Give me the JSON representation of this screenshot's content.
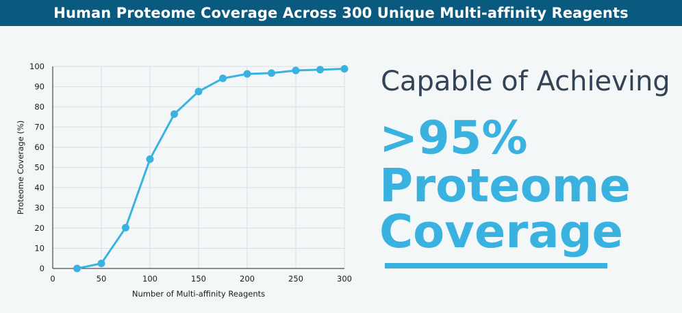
{
  "header": {
    "title": "Human Proteome Coverage Across 300 Unique Multi-affinity Reagents"
  },
  "headline": {
    "line1": "Capable of Achieving",
    "line2": ">95%",
    "line3": "Proteome",
    "line4": "Coverage"
  },
  "colors": {
    "banner": "#0a5a80",
    "accent": "#3ab2e0",
    "text_dark": "#344255"
  },
  "chart_data": {
    "type": "line",
    "xlabel": "Number of Multi-affinity Reagents",
    "ylabel": "Proteome Coverage (%)",
    "xlim": [
      0,
      300
    ],
    "ylim": [
      0,
      100
    ],
    "x_ticks": [
      0,
      50,
      100,
      150,
      200,
      250,
      300
    ],
    "y_ticks": [
      0,
      10,
      20,
      30,
      40,
      50,
      60,
      70,
      80,
      90,
      100
    ],
    "grid": true,
    "series": [
      {
        "x": [
          25,
          50,
          75,
          100,
          125,
          150,
          175,
          200,
          225,
          250,
          275,
          300
        ],
        "y": [
          0,
          2.5,
          20.2,
          54.1,
          76.4,
          87.6,
          94.1,
          96.3,
          96.7,
          98.0,
          98.4,
          98.8
        ]
      }
    ]
  }
}
